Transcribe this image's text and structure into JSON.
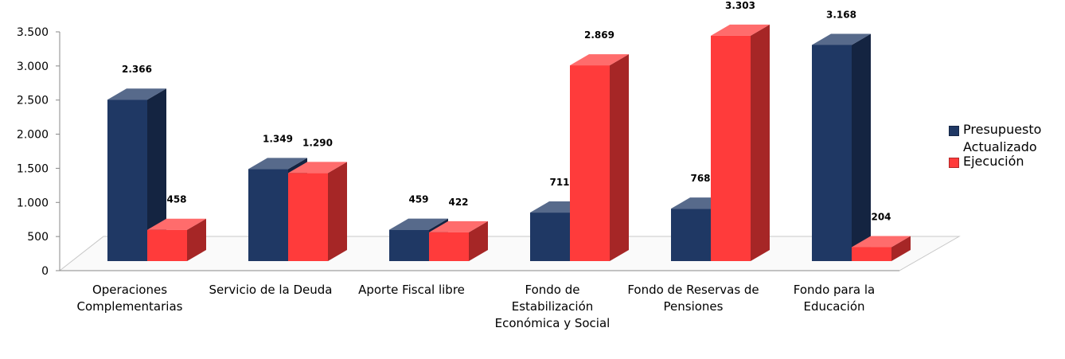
{
  "chart_data": {
    "type": "bar",
    "categories": [
      "Operaciones Complementarias",
      "Servicio de la Deuda",
      "Aporte Fiscal libre",
      "Fondo de Estabilización Económica y Social",
      "Fondo de Reservas de Pensiones",
      "Fondo para la Educación"
    ],
    "series": [
      {
        "name": "Presupuesto Actualizado",
        "color": "#1f3864",
        "values": [
          2366,
          1349,
          459,
          711,
          768,
          3168
        ],
        "value_labels": [
          "2.366",
          "1.349",
          "459",
          "711",
          "768",
          "3.168"
        ]
      },
      {
        "name": "Ejecución",
        "color": "#ff3b3b",
        "values": [
          458,
          1290,
          422,
          2869,
          3303,
          204
        ],
        "value_labels": [
          "458",
          "1.290",
          "422",
          "2.869",
          "3.303",
          "204"
        ]
      }
    ],
    "ylim": [
      0,
      3500
    ],
    "yticks": [
      0,
      500,
      {
        "value": 1000,
        "label": "1.000"
      },
      {
        "value": 1500,
        "label": "1.500"
      },
      {
        "value": 2000,
        "label": "2.000"
      },
      {
        "value": 2500,
        "label": "2.500"
      },
      {
        "value": 3000,
        "label": "3.000"
      },
      {
        "value": 3500,
        "label": "3.500"
      }
    ],
    "legend": "right"
  }
}
